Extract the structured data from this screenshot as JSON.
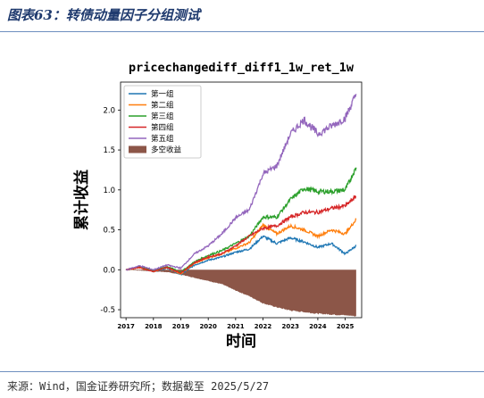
{
  "caption": "图表63：转债动量因子分组测试",
  "source": "来源：Wind，国金证券研究所；数据截至 2025/5/27",
  "chart_data": {
    "type": "line",
    "title": "pricechangediff_diff1_1w_ret_1w",
    "xlabel": "时间",
    "ylabel": "累计收益",
    "x_ticks": [
      "2017",
      "2018",
      "2019",
      "2020",
      "2021",
      "2022",
      "2023",
      "2024",
      "2025"
    ],
    "y_ticks": [
      "-0.5",
      "0.0",
      "0.5",
      "1.0",
      "1.5",
      "2.0"
    ],
    "ylim": [
      -0.6,
      2.35
    ],
    "xlim": [
      2016.8,
      2025.6
    ],
    "grid": false,
    "legend_position": "top-left",
    "x": [
      2017.0,
      2017.5,
      2018.0,
      2018.5,
      2019.0,
      2019.5,
      2020.0,
      2020.5,
      2021.0,
      2021.5,
      2022.0,
      2022.5,
      2023.0,
      2023.5,
      2024.0,
      2024.5,
      2025.0,
      2025.4
    ],
    "series": [
      {
        "name": "第一组",
        "color": "#1f77b4",
        "values": [
          0.0,
          0.03,
          -0.02,
          0.02,
          -0.06,
          0.06,
          0.12,
          0.16,
          0.22,
          0.26,
          0.42,
          0.33,
          0.4,
          0.35,
          0.28,
          0.33,
          0.2,
          0.3
        ]
      },
      {
        "name": "第二组",
        "color": "#ff7f0e",
        "values": [
          0.0,
          0.03,
          -0.02,
          0.03,
          -0.05,
          0.08,
          0.15,
          0.2,
          0.27,
          0.34,
          0.56,
          0.45,
          0.55,
          0.5,
          0.42,
          0.5,
          0.45,
          0.63
        ]
      },
      {
        "name": "第三组",
        "color": "#2ca02c",
        "values": [
          0.0,
          0.04,
          -0.01,
          0.04,
          -0.03,
          0.1,
          0.18,
          0.24,
          0.33,
          0.42,
          0.66,
          0.66,
          0.88,
          1.02,
          0.98,
          0.98,
          1.0,
          1.28
        ]
      },
      {
        "name": "第四组",
        "color": "#d62728",
        "values": [
          0.0,
          0.03,
          -0.02,
          0.03,
          -0.04,
          0.09,
          0.16,
          0.2,
          0.3,
          0.42,
          0.52,
          0.55,
          0.66,
          0.72,
          0.72,
          0.77,
          0.8,
          0.92
        ]
      },
      {
        "name": "第五组",
        "color": "#9467bd",
        "values": [
          0.0,
          0.05,
          0.0,
          0.06,
          0.02,
          0.2,
          0.3,
          0.45,
          0.65,
          0.75,
          1.2,
          1.3,
          1.7,
          1.88,
          1.7,
          1.8,
          1.9,
          2.2
        ]
      }
    ],
    "long_short": {
      "name": "多空收益",
      "color": "#8c5648",
      "values": [
        0.0,
        -0.01,
        -0.02,
        -0.03,
        -0.06,
        -0.1,
        -0.14,
        -0.18,
        -0.26,
        -0.33,
        -0.42,
        -0.47,
        -0.51,
        -0.53,
        -0.55,
        -0.56,
        -0.57,
        -0.58
      ]
    }
  }
}
